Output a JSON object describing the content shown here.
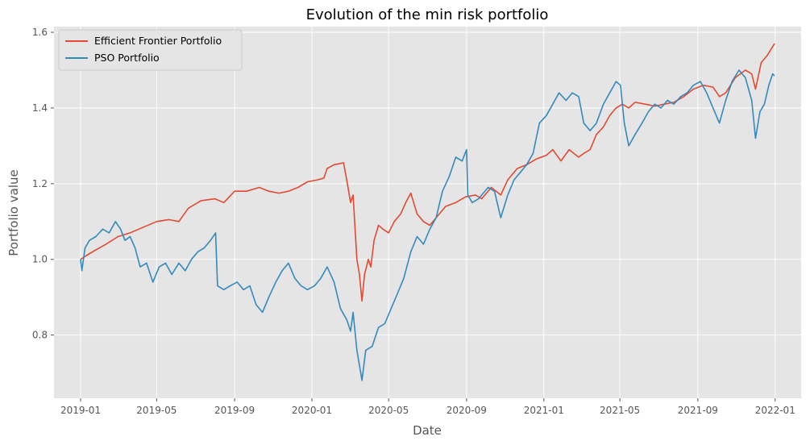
{
  "chart_data": {
    "type": "line",
    "title": "Evolution of the min risk portfolio",
    "xlabel": "Date",
    "ylabel": "Portfolio value",
    "x_range": [
      "2018-11-20",
      "2022-02-11"
    ],
    "ylim": [
      0.633,
      1.615
    ],
    "grid": true,
    "legend_position": "top-left",
    "x_ticks": [
      {
        "date": "2019-01-01",
        "label": "2019-01"
      },
      {
        "date": "2019-05-01",
        "label": "2019-05"
      },
      {
        "date": "2019-09-01",
        "label": "2019-09"
      },
      {
        "date": "2020-01-01",
        "label": "2020-01"
      },
      {
        "date": "2020-05-01",
        "label": "2020-05"
      },
      {
        "date": "2020-09-01",
        "label": "2020-09"
      },
      {
        "date": "2021-01-01",
        "label": "2021-01"
      },
      {
        "date": "2021-05-01",
        "label": "2021-05"
      },
      {
        "date": "2021-09-01",
        "label": "2021-09"
      },
      {
        "date": "2022-01-01",
        "label": "2022-01"
      }
    ],
    "y_ticks": [
      {
        "value": 0.8,
        "label": "0.8"
      },
      {
        "value": 1.0,
        "label": "1.0"
      },
      {
        "value": 1.2,
        "label": "1.2"
      },
      {
        "value": 1.4,
        "label": "1.4"
      },
      {
        "value": 1.6,
        "label": "1.6"
      }
    ],
    "series": [
      {
        "name": "Efficient Frontier Portfolio",
        "color": "#e24a33",
        "points": [
          [
            "2019-01-01",
            1.0
          ],
          [
            "2019-01-10",
            1.01
          ],
          [
            "2019-01-25",
            1.025
          ],
          [
            "2019-02-10",
            1.04
          ],
          [
            "2019-03-01",
            1.06
          ],
          [
            "2019-03-20",
            1.07
          ],
          [
            "2019-04-10",
            1.085
          ],
          [
            "2019-05-01",
            1.1
          ],
          [
            "2019-05-20",
            1.105
          ],
          [
            "2019-06-05",
            1.1
          ],
          [
            "2019-06-20",
            1.135
          ],
          [
            "2019-07-10",
            1.155
          ],
          [
            "2019-08-01",
            1.16
          ],
          [
            "2019-08-15",
            1.15
          ],
          [
            "2019-09-01",
            1.18
          ],
          [
            "2019-09-20",
            1.18
          ],
          [
            "2019-10-10",
            1.19
          ],
          [
            "2019-10-25",
            1.18
          ],
          [
            "2019-11-10",
            1.175
          ],
          [
            "2019-11-25",
            1.18
          ],
          [
            "2019-12-10",
            1.19
          ],
          [
            "2019-12-25",
            1.205
          ],
          [
            "2020-01-10",
            1.21
          ],
          [
            "2020-01-20",
            1.215
          ],
          [
            "2020-01-25",
            1.24
          ],
          [
            "2020-02-05",
            1.25
          ],
          [
            "2020-02-20",
            1.255
          ],
          [
            "2020-02-26",
            1.2
          ],
          [
            "2020-03-02",
            1.15
          ],
          [
            "2020-03-06",
            1.17
          ],
          [
            "2020-03-12",
            1.0
          ],
          [
            "2020-03-16",
            0.96
          ],
          [
            "2020-03-20",
            0.89
          ],
          [
            "2020-03-24",
            0.96
          ],
          [
            "2020-03-30",
            1.0
          ],
          [
            "2020-04-03",
            0.98
          ],
          [
            "2020-04-08",
            1.05
          ],
          [
            "2020-04-15",
            1.09
          ],
          [
            "2020-04-22",
            1.08
          ],
          [
            "2020-05-01",
            1.07
          ],
          [
            "2020-05-10",
            1.1
          ],
          [
            "2020-05-20",
            1.12
          ],
          [
            "2020-05-28",
            1.15
          ],
          [
            "2020-06-05",
            1.175
          ],
          [
            "2020-06-15",
            1.12
          ],
          [
            "2020-06-25",
            1.1
          ],
          [
            "2020-07-05",
            1.09
          ],
          [
            "2020-07-15",
            1.11
          ],
          [
            "2020-07-30",
            1.14
          ],
          [
            "2020-08-15",
            1.15
          ],
          [
            "2020-08-30",
            1.165
          ],
          [
            "2020-09-15",
            1.17
          ],
          [
            "2020-09-25",
            1.16
          ],
          [
            "2020-10-10",
            1.19
          ],
          [
            "2020-10-25",
            1.17
          ],
          [
            "2020-11-05",
            1.21
          ],
          [
            "2020-11-20",
            1.24
          ],
          [
            "2020-12-05",
            1.25
          ],
          [
            "2020-12-20",
            1.265
          ],
          [
            "2021-01-05",
            1.275
          ],
          [
            "2021-01-15",
            1.29
          ],
          [
            "2021-01-28",
            1.26
          ],
          [
            "2021-02-10",
            1.29
          ],
          [
            "2021-02-25",
            1.27
          ],
          [
            "2021-03-05",
            1.28
          ],
          [
            "2021-03-15",
            1.29
          ],
          [
            "2021-03-25",
            1.33
          ],
          [
            "2021-04-05",
            1.35
          ],
          [
            "2021-04-15",
            1.38
          ],
          [
            "2021-04-25",
            1.4
          ],
          [
            "2021-05-05",
            1.41
          ],
          [
            "2021-05-15",
            1.4
          ],
          [
            "2021-05-25",
            1.415
          ],
          [
            "2021-06-10",
            1.41
          ],
          [
            "2021-06-25",
            1.405
          ],
          [
            "2021-07-10",
            1.41
          ],
          [
            "2021-07-25",
            1.415
          ],
          [
            "2021-08-10",
            1.43
          ],
          [
            "2021-08-25",
            1.45
          ],
          [
            "2021-09-10",
            1.46
          ],
          [
            "2021-09-25",
            1.455
          ],
          [
            "2021-10-05",
            1.43
          ],
          [
            "2021-10-15",
            1.44
          ],
          [
            "2021-10-30",
            1.48
          ],
          [
            "2021-11-15",
            1.5
          ],
          [
            "2021-11-25",
            1.49
          ],
          [
            "2021-12-01",
            1.45
          ],
          [
            "2021-12-10",
            1.52
          ],
          [
            "2021-12-20",
            1.54
          ],
          [
            "2021-12-31",
            1.57
          ]
        ]
      },
      {
        "name": "PSO Portfolio",
        "color": "#348abd",
        "points": [
          [
            "2019-01-01",
            1.0
          ],
          [
            "2019-01-03",
            0.97
          ],
          [
            "2019-01-08",
            1.03
          ],
          [
            "2019-01-15",
            1.05
          ],
          [
            "2019-01-25",
            1.06
          ],
          [
            "2019-02-05",
            1.08
          ],
          [
            "2019-02-15",
            1.07
          ],
          [
            "2019-02-25",
            1.1
          ],
          [
            "2019-03-05",
            1.08
          ],
          [
            "2019-03-12",
            1.05
          ],
          [
            "2019-03-20",
            1.06
          ],
          [
            "2019-03-28",
            1.03
          ],
          [
            "2019-04-05",
            0.98
          ],
          [
            "2019-04-15",
            0.99
          ],
          [
            "2019-04-25",
            0.94
          ],
          [
            "2019-05-05",
            0.98
          ],
          [
            "2019-05-15",
            0.99
          ],
          [
            "2019-05-25",
            0.96
          ],
          [
            "2019-06-05",
            0.99
          ],
          [
            "2019-06-15",
            0.97
          ],
          [
            "2019-06-25",
            1.0
          ],
          [
            "2019-07-05",
            1.02
          ],
          [
            "2019-07-15",
            1.03
          ],
          [
            "2019-07-25",
            1.05
          ],
          [
            "2019-08-02",
            1.07
          ],
          [
            "2019-08-05",
            0.93
          ],
          [
            "2019-08-15",
            0.92
          ],
          [
            "2019-08-25",
            0.93
          ],
          [
            "2019-09-05",
            0.94
          ],
          [
            "2019-09-15",
            0.92
          ],
          [
            "2019-09-25",
            0.93
          ],
          [
            "2019-10-05",
            0.88
          ],
          [
            "2019-10-15",
            0.86
          ],
          [
            "2019-10-25",
            0.9
          ],
          [
            "2019-11-05",
            0.94
          ],
          [
            "2019-11-15",
            0.97
          ],
          [
            "2019-11-25",
            0.99
          ],
          [
            "2019-12-05",
            0.95
          ],
          [
            "2019-12-15",
            0.93
          ],
          [
            "2019-12-25",
            0.92
          ],
          [
            "2020-01-05",
            0.93
          ],
          [
            "2020-01-15",
            0.95
          ],
          [
            "2020-01-25",
            0.98
          ],
          [
            "2020-02-05",
            0.94
          ],
          [
            "2020-02-15",
            0.87
          ],
          [
            "2020-02-25",
            0.84
          ],
          [
            "2020-03-02",
            0.81
          ],
          [
            "2020-03-06",
            0.86
          ],
          [
            "2020-03-12",
            0.76
          ],
          [
            "2020-03-16",
            0.72
          ],
          [
            "2020-03-20",
            0.68
          ],
          [
            "2020-03-26",
            0.76
          ],
          [
            "2020-04-05",
            0.77
          ],
          [
            "2020-04-15",
            0.82
          ],
          [
            "2020-04-25",
            0.83
          ],
          [
            "2020-05-05",
            0.87
          ],
          [
            "2020-05-15",
            0.91
          ],
          [
            "2020-05-25",
            0.95
          ],
          [
            "2020-06-05",
            1.02
          ],
          [
            "2020-06-15",
            1.06
          ],
          [
            "2020-06-25",
            1.04
          ],
          [
            "2020-07-05",
            1.08
          ],
          [
            "2020-07-15",
            1.11
          ],
          [
            "2020-07-25",
            1.18
          ],
          [
            "2020-08-05",
            1.22
          ],
          [
            "2020-08-15",
            1.27
          ],
          [
            "2020-08-25",
            1.26
          ],
          [
            "2020-09-01",
            1.29
          ],
          [
            "2020-09-03",
            1.17
          ],
          [
            "2020-09-10",
            1.15
          ],
          [
            "2020-09-20",
            1.16
          ],
          [
            "2020-10-05",
            1.19
          ],
          [
            "2020-10-15",
            1.18
          ],
          [
            "2020-10-25",
            1.11
          ],
          [
            "2020-11-05",
            1.17
          ],
          [
            "2020-11-15",
            1.21
          ],
          [
            "2020-11-25",
            1.23
          ],
          [
            "2020-12-05",
            1.25
          ],
          [
            "2020-12-15",
            1.28
          ],
          [
            "2020-12-25",
            1.36
          ],
          [
            "2021-01-05",
            1.38
          ],
          [
            "2021-01-15",
            1.41
          ],
          [
            "2021-01-25",
            1.44
          ],
          [
            "2021-02-05",
            1.42
          ],
          [
            "2021-02-15",
            1.44
          ],
          [
            "2021-02-25",
            1.43
          ],
          [
            "2021-03-05",
            1.36
          ],
          [
            "2021-03-15",
            1.34
          ],
          [
            "2021-03-25",
            1.36
          ],
          [
            "2021-04-05",
            1.41
          ],
          [
            "2021-04-15",
            1.44
          ],
          [
            "2021-04-25",
            1.47
          ],
          [
            "2021-05-02",
            1.46
          ],
          [
            "2021-05-08",
            1.36
          ],
          [
            "2021-05-15",
            1.3
          ],
          [
            "2021-05-25",
            1.33
          ],
          [
            "2021-06-05",
            1.36
          ],
          [
            "2021-06-15",
            1.39
          ],
          [
            "2021-06-25",
            1.41
          ],
          [
            "2021-07-05",
            1.4
          ],
          [
            "2021-07-15",
            1.42
          ],
          [
            "2021-07-25",
            1.41
          ],
          [
            "2021-08-05",
            1.43
          ],
          [
            "2021-08-15",
            1.44
          ],
          [
            "2021-08-25",
            1.46
          ],
          [
            "2021-09-05",
            1.47
          ],
          [
            "2021-09-15",
            1.44
          ],
          [
            "2021-09-25",
            1.4
          ],
          [
            "2021-10-05",
            1.36
          ],
          [
            "2021-10-15",
            1.42
          ],
          [
            "2021-10-25",
            1.47
          ],
          [
            "2021-11-05",
            1.5
          ],
          [
            "2021-11-15",
            1.48
          ],
          [
            "2021-11-25",
            1.42
          ],
          [
            "2021-12-01",
            1.32
          ],
          [
            "2021-12-08",
            1.39
          ],
          [
            "2021-12-15",
            1.41
          ],
          [
            "2021-12-22",
            1.46
          ],
          [
            "2021-12-28",
            1.49
          ],
          [
            "2021-12-31",
            1.485
          ]
        ]
      }
    ]
  }
}
